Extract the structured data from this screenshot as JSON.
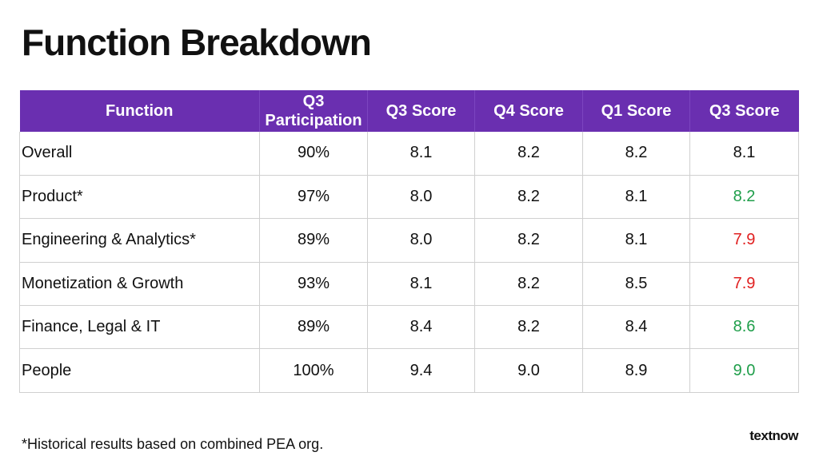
{
  "title": "Function Breakdown",
  "table": {
    "headers": [
      "Function",
      "Q3\nParticipation",
      "Q3 Score",
      "Q4 Score",
      "Q1 Score",
      "Q3 Score"
    ],
    "rows": [
      {
        "function": "Overall",
        "participation": "90%",
        "q3": "8.1",
        "q4": "8.2",
        "q1": "8.2",
        "q3_current": "8.1",
        "q3_current_status": "neutral"
      },
      {
        "function": "Product*",
        "participation": "97%",
        "q3": "8.0",
        "q4": "8.2",
        "q1": "8.1",
        "q3_current": "8.2",
        "q3_current_status": "up"
      },
      {
        "function": "Engineering & Analytics*",
        "participation": "89%",
        "q3": "8.0",
        "q4": "8.2",
        "q1": "8.1",
        "q3_current": "7.9",
        "q3_current_status": "down"
      },
      {
        "function": "Monetization & Growth",
        "participation": "93%",
        "q3": "8.1",
        "q4": "8.2",
        "q1": "8.5",
        "q3_current": "7.9",
        "q3_current_status": "down"
      },
      {
        "function": "Finance, Legal & IT",
        "participation": "89%",
        "q3": "8.4",
        "q4": "8.2",
        "q1": "8.4",
        "q3_current": "8.6",
        "q3_current_status": "up"
      },
      {
        "function": "People",
        "participation": "100%",
        "q3": "9.4",
        "q4": "9.0",
        "q1": "8.9",
        "q3_current": "9.0",
        "q3_current_status": "up"
      }
    ]
  },
  "colors": {
    "header_bg": "#6a2fb0",
    "up": "#1f9e4a",
    "down": "#e02020",
    "neutral": "#111111"
  },
  "footnote": "*Historical results based on combined PEA org.",
  "logo": "textnow"
}
